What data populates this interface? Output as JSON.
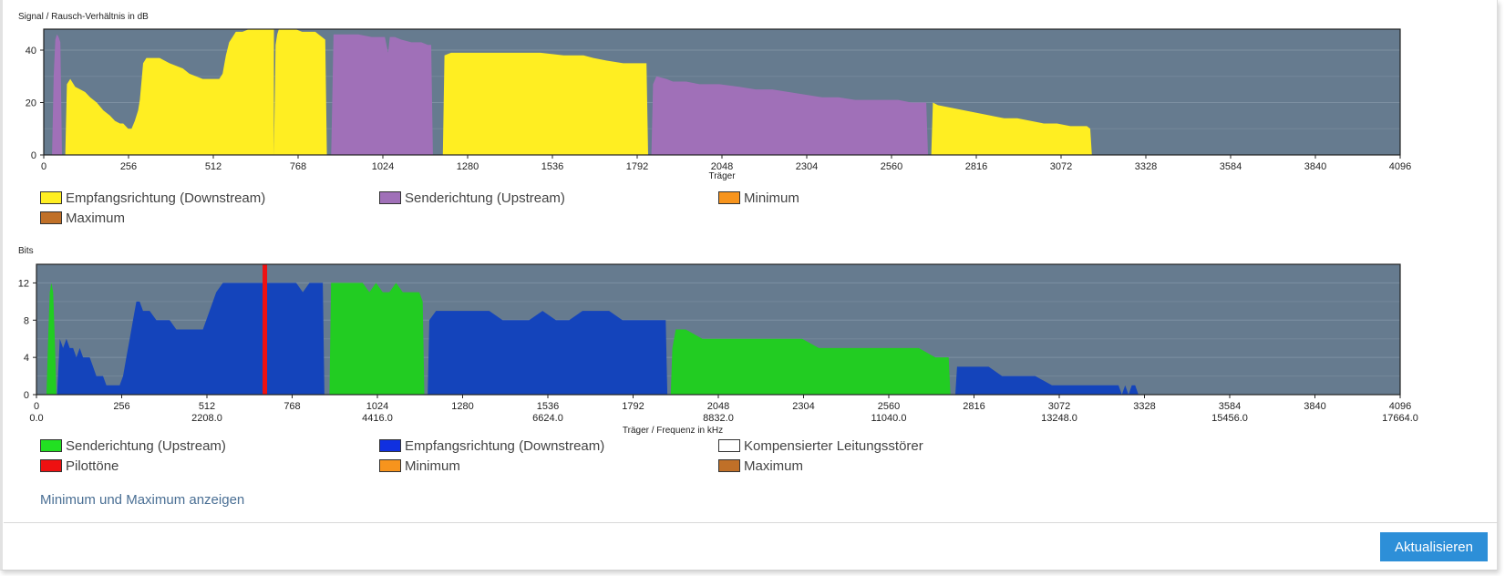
{
  "chart_data": [
    {
      "type": "area",
      "title": "Signal / Rausch-Verhältnis in dB",
      "xlabel": "Träger",
      "ylabel": "",
      "xlim": [
        0,
        4096
      ],
      "ylim": [
        0,
        48
      ],
      "x_ticks": [
        0,
        256,
        512,
        768,
        1024,
        1280,
        1536,
        1792,
        2048,
        2304,
        2560,
        2816,
        3072,
        3328,
        3584,
        3840,
        4096
      ],
      "y_ticks": [
        0,
        20,
        40
      ],
      "grid": true,
      "legend_position": "bottom",
      "legend": [
        {
          "label": "Empfangsrichtung (Downstream)",
          "color": "#ffee22"
        },
        {
          "label": "Senderichtung (Upstream)",
          "color": "#a070b8"
        },
        {
          "label": "Minimum",
          "color": "#f7941d"
        },
        {
          "label": "Maximum",
          "color": "#c07028"
        }
      ],
      "series": [
        {
          "name": "Senderichtung (Upstream)",
          "color": "#a070b8",
          "x": [
            25,
            30,
            35,
            40,
            45,
            50,
            55
          ],
          "y": [
            0,
            30,
            44,
            46,
            45,
            43,
            0
          ]
        },
        {
          "name": "Empfangsrichtung (Downstream)",
          "color": "#ffee22",
          "x": [
            65,
            70,
            80,
            95,
            110,
            125,
            140,
            160,
            180,
            200,
            215,
            230,
            240,
            255,
            265,
            275,
            285,
            290,
            300,
            310,
            330,
            350,
            380,
            420,
            440,
            460,
            480,
            500,
            520,
            530,
            540,
            550,
            560,
            570,
            580,
            590,
            600,
            620,
            640,
            660,
            680,
            685,
            690,
            695
          ],
          "y": [
            0,
            27,
            29,
            26,
            25,
            24,
            22,
            20,
            17,
            15,
            13,
            12,
            12,
            10,
            10,
            13,
            17,
            21,
            35,
            37,
            37,
            37,
            35,
            33,
            31,
            30,
            29,
            29,
            29,
            29,
            31,
            38,
            43,
            45,
            47,
            47,
            47,
            49,
            49,
            49,
            49,
            48,
            48,
            48
          ]
        },
        {
          "name": "Empfangsrichtung (Downstream)",
          "color": "#ffee22",
          "x": [
            695,
            700,
            705,
            710,
            720,
            760,
            780,
            800,
            820,
            830,
            840,
            850,
            855
          ],
          "y": [
            0,
            42,
            46,
            48,
            48,
            48,
            47,
            47,
            47,
            46,
            45,
            44,
            0
          ]
        },
        {
          "name": "Senderichtung (Upstream)",
          "color": "#a070b8",
          "x": [
            868,
            875,
            890,
            910,
            950,
            990,
            1030,
            1040,
            1045,
            1050,
            1060,
            1080,
            1110,
            1140,
            1160,
            1170,
            1175
          ],
          "y": [
            0,
            46,
            46,
            46,
            46,
            45,
            45,
            39,
            45,
            45,
            45,
            44,
            43,
            43,
            42,
            42,
            0
          ]
        },
        {
          "name": "Empfangsrichtung (Downstream)",
          "color": "#ffee22",
          "x": [
            1205,
            1210,
            1230,
            1280,
            1350,
            1420,
            1500,
            1570,
            1630,
            1660,
            1700,
            1750,
            1780,
            1800,
            1820,
            1825
          ],
          "y": [
            0,
            38,
            39,
            39,
            39,
            39,
            39,
            38,
            38,
            37,
            36,
            35,
            35,
            35,
            35,
            0
          ]
        },
        {
          "name": "Senderichtung (Upstream)",
          "color": "#a070b8",
          "x": [
            1835,
            1840,
            1850,
            1880,
            1900,
            1940,
            1980,
            2040,
            2100,
            2150,
            2200,
            2250,
            2300,
            2350,
            2400,
            2450,
            2500,
            2540,
            2580,
            2620,
            2660,
            2665,
            2670
          ],
          "y": [
            0,
            27,
            30,
            29,
            28,
            28,
            27,
            27,
            26,
            25,
            25,
            24,
            23,
            22,
            22,
            21,
            21,
            21,
            21,
            20,
            20,
            20,
            0
          ]
        },
        {
          "name": "Empfangsrichtung (Downstream)",
          "color": "#ffee22",
          "x": [
            2680,
            2685,
            2700,
            2740,
            2780,
            2820,
            2860,
            2900,
            2940,
            2980,
            3020,
            3060,
            3100,
            3140,
            3150,
            3160,
            3165
          ],
          "y": [
            0,
            20,
            19,
            18,
            17,
            16,
            15,
            14,
            14,
            13,
            12,
            12,
            11,
            11,
            11,
            10,
            0
          ]
        }
      ]
    },
    {
      "type": "area",
      "title": "Bits",
      "xlabel": "Träger / Frequenz in kHz",
      "ylabel": "",
      "xlim": [
        0,
        4096
      ],
      "ylim": [
        0,
        14
      ],
      "x_ticks": [
        0,
        256,
        512,
        768,
        1024,
        1280,
        1536,
        1792,
        2048,
        2304,
        2560,
        2816,
        3072,
        3328,
        3584,
        3840,
        4096
      ],
      "x_ticks_khz": [
        "0.0",
        "2208.0",
        "4416.0",
        "6624.0",
        "8832.0",
        "11040.0",
        "13248.0",
        "15456.0",
        "17664.0"
      ],
      "y_ticks": [
        0,
        4,
        8,
        12
      ],
      "grid": true,
      "legend_position": "bottom",
      "legend": [
        {
          "label": "Senderichtung (Upstream)",
          "color": "#22e022"
        },
        {
          "label": "Empfangsrichtung (Downstream)",
          "color": "#1030e0"
        },
        {
          "label": "Kompensierter Leitungsstörer",
          "color": "#ffffff"
        },
        {
          "label": "Pilottöne",
          "color": "#ee1111"
        },
        {
          "label": "Minimum",
          "color": "#f7941d"
        },
        {
          "label": "Maximum",
          "color": "#c07028"
        }
      ],
      "pilot_tone_x": 686,
      "series": [
        {
          "name": "Senderichtung (Upstream)",
          "color": "#22cc22",
          "x": [
            30,
            35,
            40,
            45,
            50,
            55,
            60
          ],
          "y": [
            0,
            6,
            11,
            12,
            11,
            6,
            0
          ]
        },
        {
          "name": "Empfangsrichtung (Downstream)",
          "color": "#1444bb",
          "x": [
            62,
            70,
            80,
            90,
            100,
            110,
            120,
            130,
            140,
            150,
            160,
            170,
            180,
            190,
            200,
            210,
            220,
            230,
            240,
            250,
            260,
            270,
            280,
            290,
            300,
            310,
            320,
            330,
            340,
            360,
            380,
            400,
            420,
            440,
            460,
            480,
            500,
            520,
            540,
            560,
            580,
            600,
            620,
            640,
            660,
            680,
            700,
            720,
            740,
            760,
            780,
            800,
            820,
            840,
            860,
            865
          ],
          "y": [
            0,
            6,
            5,
            6,
            5,
            5,
            4,
            5,
            4,
            4,
            4,
            3,
            2,
            2,
            2,
            1,
            1,
            1,
            1,
            1,
            2,
            4,
            6,
            8,
            10,
            10,
            9,
            9,
            9,
            8,
            8,
            8,
            7,
            7,
            7,
            7,
            7,
            9,
            11,
            12,
            12,
            12,
            12,
            12,
            12,
            12,
            12,
            12,
            12,
            12,
            12,
            11,
            12,
            12,
            12,
            0
          ]
        },
        {
          "name": "Senderichtung (Upstream)",
          "color": "#22cc22",
          "x": [
            880,
            885,
            900,
            920,
            940,
            960,
            980,
            1000,
            1020,
            1040,
            1060,
            1080,
            1100,
            1120,
            1140,
            1150,
            1160,
            1165
          ],
          "y": [
            0,
            12,
            12,
            12,
            12,
            12,
            12,
            11,
            12,
            11,
            11,
            12,
            11,
            11,
            11,
            11,
            10,
            0
          ]
        },
        {
          "name": "Empfangsrichtung (Downstream)",
          "color": "#1444bb",
          "x": [
            1175,
            1180,
            1200,
            1240,
            1280,
            1320,
            1360,
            1400,
            1440,
            1480,
            1520,
            1560,
            1600,
            1640,
            1680,
            1720,
            1760,
            1800,
            1840,
            1860,
            1890,
            1895
          ],
          "y": [
            0,
            8,
            9,
            9,
            9,
            9,
            9,
            8,
            8,
            8,
            9,
            8,
            8,
            9,
            9,
            9,
            8,
            8,
            8,
            8,
            8,
            0
          ]
        },
        {
          "name": "Senderichtung (Upstream)",
          "color": "#22cc22",
          "x": [
            1905,
            1910,
            1920,
            1950,
            2000,
            2050,
            2100,
            2150,
            2200,
            2250,
            2300,
            2350,
            2400,
            2450,
            2500,
            2550,
            2600,
            2650,
            2700,
            2720,
            2740,
            2745
          ],
          "y": [
            0,
            5,
            7,
            7,
            6,
            6,
            6,
            6,
            6,
            6,
            6,
            5,
            5,
            5,
            5,
            5,
            5,
            5,
            4,
            4,
            4,
            0
          ]
        },
        {
          "name": "Empfangsrichtung (Downstream)",
          "color": "#1444bb",
          "x": [
            2760,
            2765,
            2780,
            2820,
            2860,
            2900,
            2950,
            3000,
            3050,
            3100,
            3150,
            3200,
            3250,
            3260,
            3270,
            3280,
            3290,
            3300,
            3310
          ],
          "y": [
            0,
            3,
            3,
            3,
            3,
            2,
            2,
            2,
            1,
            1,
            1,
            1,
            1,
            0,
            1,
            0,
            1,
            1,
            0
          ]
        }
      ]
    }
  ],
  "actions": {
    "toggle_minmax": "Minimum und Maximum anzeigen",
    "refresh": "Aktualisieren"
  }
}
